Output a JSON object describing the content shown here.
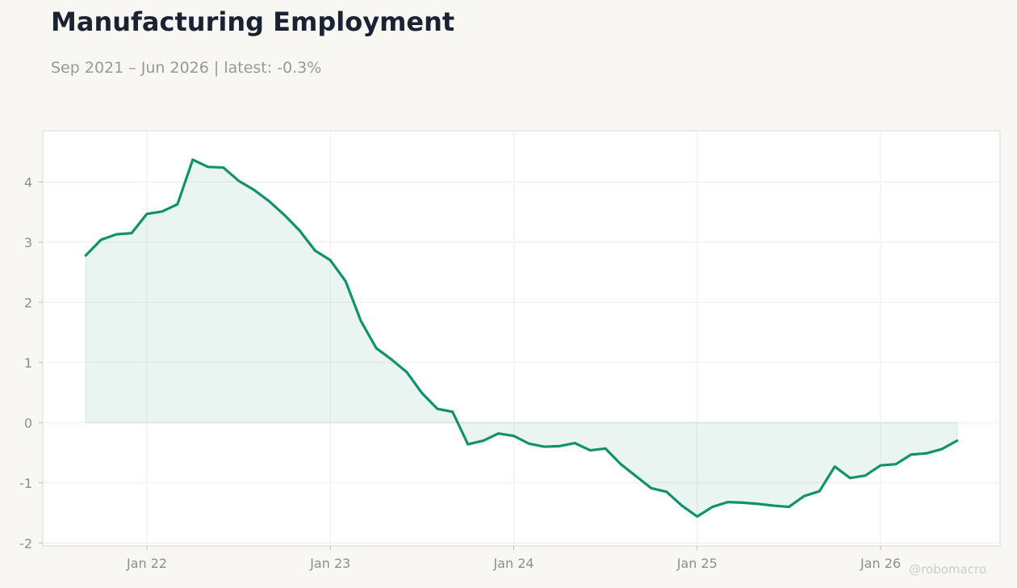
{
  "header": {
    "title": "Manufacturing Employment",
    "subtitle": "Sep 2021 – Jun 2026 | latest: -0.3%"
  },
  "watermark": "@robomacro",
  "colors": {
    "line": "#11936a",
    "fill": "#11936a",
    "grid": "#eeeeee",
    "frame": "#dcdad2"
  },
  "chart_data": {
    "type": "area",
    "title": "Manufacturing Employment",
    "xlabel": "",
    "ylabel": "",
    "x_start": "2021-09",
    "x_end": "2026-06",
    "x_ticks": [
      "Jan 22",
      "Jan 23",
      "Jan 24",
      "Jan 25",
      "Jan 26"
    ],
    "x_tick_dates": [
      "2022-01",
      "2023-01",
      "2024-01",
      "2025-01",
      "2026-01"
    ],
    "y_ticks": [
      -2,
      -1,
      0,
      1,
      2,
      3,
      4
    ],
    "ylim": [
      -2.05,
      4.85
    ],
    "grid": true,
    "legend": "none",
    "series": [
      {
        "dates": [
          "2021-09",
          "2021-10",
          "2021-11",
          "2021-12",
          "2022-01",
          "2022-02",
          "2022-03",
          "2022-04",
          "2022-05",
          "2022-06",
          "2022-07",
          "2022-08",
          "2022-09",
          "2022-10",
          "2022-11",
          "2022-12",
          "2023-01",
          "2023-02",
          "2023-03",
          "2023-04",
          "2023-05",
          "2023-06",
          "2023-07",
          "2023-08",
          "2023-09",
          "2023-10",
          "2023-11",
          "2023-12",
          "2024-01",
          "2024-02",
          "2024-03",
          "2024-04",
          "2024-05",
          "2024-06",
          "2024-07",
          "2024-08",
          "2024-09",
          "2024-10",
          "2024-11",
          "2024-12",
          "2025-01",
          "2025-02",
          "2025-03",
          "2025-04",
          "2025-05",
          "2025-06",
          "2025-07",
          "2025-08",
          "2025-09",
          "2025-10",
          "2025-11",
          "2025-12",
          "2026-01",
          "2026-02",
          "2026-03",
          "2026-04",
          "2026-05",
          "2026-06"
        ],
        "values": [
          2.78,
          3.04,
          3.13,
          3.15,
          3.47,
          3.51,
          3.63,
          4.37,
          4.25,
          4.24,
          4.02,
          3.87,
          3.68,
          3.45,
          3.19,
          2.86,
          2.7,
          2.35,
          1.69,
          1.24,
          1.05,
          0.84,
          0.49,
          0.23,
          0.18,
          -0.36,
          -0.3,
          -0.18,
          -0.22,
          -0.35,
          -0.4,
          -0.39,
          -0.34,
          -0.46,
          -0.43,
          -0.69,
          -0.89,
          -1.09,
          -1.15,
          -1.38,
          -1.56,
          -1.4,
          -1.32,
          -1.33,
          -1.35,
          -1.38,
          -1.4,
          -1.22,
          -1.14,
          -0.73,
          -0.92,
          -0.88,
          -0.71,
          -0.69,
          -0.53,
          -0.51,
          -0.44,
          -0.3
        ]
      }
    ]
  }
}
